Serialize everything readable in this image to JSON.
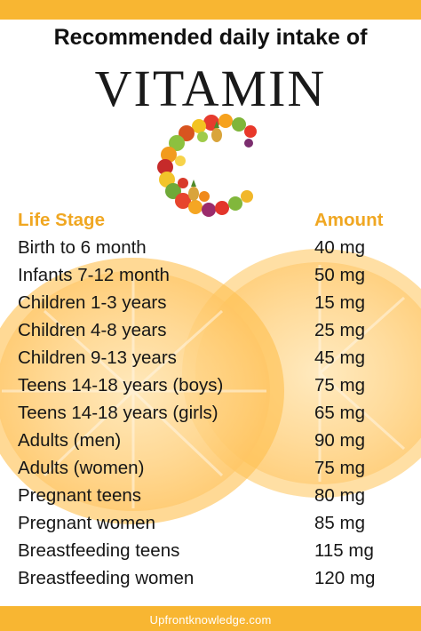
{
  "header": {
    "subtitle": "Recommended daily intake of",
    "title": "VITAMIN"
  },
  "graphic": {
    "letter_icon": "fruit-letter-c-icon",
    "background_icon": "orange-slice-icon"
  },
  "table": {
    "headers": {
      "stage": "Life Stage",
      "amount": "Amount"
    },
    "rows": [
      {
        "stage": "Birth to 6 month",
        "amount": "40 mg"
      },
      {
        "stage": "Infants 7-12 month",
        "amount": "50 mg"
      },
      {
        "stage": "Children 1-3 years",
        "amount": "15 mg"
      },
      {
        "stage": "Children 4-8 years",
        "amount": "25 mg"
      },
      {
        "stage": "Children 9-13 years",
        "amount": "45 mg"
      },
      {
        "stage": "Teens 14-18 years (boys)",
        "amount": "75 mg"
      },
      {
        "stage": "Teens 14-18 years (girls)",
        "amount": "65 mg"
      },
      {
        "stage": "Adults (men)",
        "amount": "90 mg"
      },
      {
        "stage": "Adults (women)",
        "amount": "75 mg"
      },
      {
        "stage": "Pregnant teens",
        "amount": "80 mg"
      },
      {
        "stage": "Pregnant women",
        "amount": "85 mg"
      },
      {
        "stage": "Breastfeeding teens",
        "amount": "115 mg"
      },
      {
        "stage": "Breastfeeding women",
        "amount": "120 mg"
      }
    ]
  },
  "footer": {
    "text": "Upfrontknowledge.com"
  },
  "colors": {
    "accent": "#f8b632",
    "header_text": "#f0a722",
    "body_text": "#161616"
  }
}
